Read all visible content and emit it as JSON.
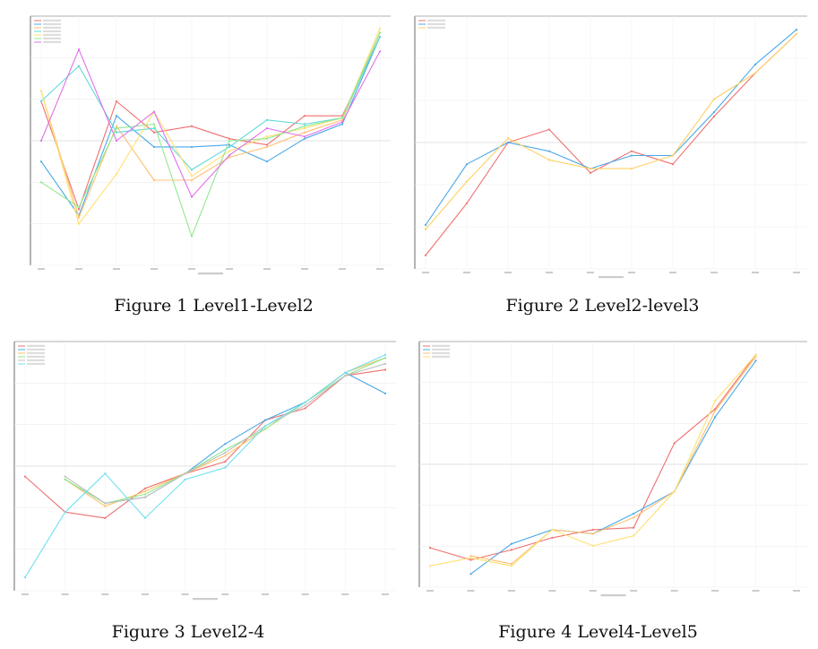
{
  "captions": [
    "Figure 1 Level1-Level2",
    "Figure 2 Level2-level3",
    "Figure 3 Level2-4",
    "Figure 4 Level4-Level5"
  ],
  "chart_data": [
    {
      "type": "line",
      "title": "",
      "grid": true,
      "legend": "top-left",
      "x": [
        1,
        2,
        3,
        4,
        5,
        6,
        7,
        8,
        9,
        10
      ],
      "ylim": [
        0,
        6
      ],
      "series": [
        {
          "color": "#f07070",
          "values": [
            3.95,
            1.35,
            3.95,
            3.2,
            3.35,
            3.05,
            2.9,
            3.6,
            3.6,
            5.5
          ]
        },
        {
          "color": "#4aa8e8",
          "values": [
            2.5,
            1.2,
            3.6,
            2.85,
            2.85,
            2.9,
            2.5,
            3.05,
            3.4,
            5.5
          ]
        },
        {
          "color": "#ffc070",
          "values": [
            4.2,
            1.15,
            3.35,
            2.05,
            2.05,
            2.6,
            2.85,
            3.2,
            3.5,
            5.6
          ]
        },
        {
          "color": "#60d8d8",
          "values": [
            3.95,
            4.8,
            3.2,
            3.3,
            2.3,
            2.85,
            3.5,
            3.4,
            3.55,
            5.5
          ]
        },
        {
          "color": "#ffe070",
          "values": [
            4.2,
            1.0,
            2.2,
            3.7,
            2.15,
            2.75,
            3.1,
            3.3,
            3.55,
            5.7
          ]
        },
        {
          "color": "#90e890",
          "values": [
            2.0,
            1.4,
            3.3,
            3.4,
            0.7,
            3.0,
            3.05,
            3.35,
            3.55,
            5.6
          ]
        },
        {
          "color": "#e070e8",
          "values": [
            3.0,
            5.2,
            3.0,
            3.7,
            1.65,
            2.65,
            3.3,
            3.1,
            3.45,
            5.15
          ]
        }
      ]
    },
    {
      "type": "line",
      "title": "",
      "grid": true,
      "legend": "top-left",
      "x": [
        1,
        2,
        3,
        4,
        5,
        6,
        7,
        8,
        9,
        10
      ],
      "series": [
        {
          "color": "#f07070",
          "values": [
            1.0,
            1.6,
            2.3,
            2.45,
            1.95,
            2.2,
            2.05,
            2.6,
            3.1,
            3.55
          ]
        },
        {
          "color": "#4aa8e8",
          "values": [
            1.35,
            2.05,
            2.3,
            2.2,
            2.0,
            2.15,
            2.15,
            2.65,
            3.2,
            3.6
          ]
        },
        {
          "color": "#ffd060",
          "values": [
            1.3,
            1.85,
            2.35,
            2.1,
            2.0,
            2.0,
            2.15,
            2.8,
            3.1,
            3.55
          ]
        }
      ]
    },
    {
      "type": "line",
      "title": "",
      "grid": true,
      "legend": "top-left",
      "x": [
        1,
        2,
        3,
        4,
        5,
        6,
        7,
        8,
        9,
        10
      ],
      "series": [
        {
          "color": "#f07070",
          "values": [
            2.2,
            1.6,
            1.5,
            2.0,
            2.25,
            2.45,
            3.15,
            3.35,
            3.9,
            4.0
          ]
        },
        {
          "color": "#4aa8e8",
          "values": [
            null,
            2.15,
            1.75,
            1.85,
            2.25,
            2.75,
            3.15,
            3.45,
            3.95,
            3.6
          ]
        },
        {
          "color": "#ffc060",
          "values": [
            null,
            2.15,
            1.7,
            1.95,
            2.25,
            2.55,
            3.0,
            3.45,
            3.95,
            4.2
          ]
        },
        {
          "color": "#90e890",
          "values": [
            null,
            2.15,
            1.75,
            1.9,
            2.25,
            2.65,
            3.0,
            3.45,
            3.9,
            4.2
          ]
        },
        {
          "color": "#c0c0c0",
          "values": [
            null,
            2.2,
            1.75,
            1.85,
            2.25,
            2.6,
            3.05,
            3.4,
            3.9,
            4.1
          ]
        },
        {
          "color": "#70e0f0",
          "values": [
            0.5,
            1.6,
            2.25,
            1.5,
            2.15,
            2.35,
            3.05,
            3.45,
            3.95,
            4.25
          ]
        }
      ]
    },
    {
      "type": "line",
      "title": "",
      "grid": true,
      "legend": "top-left",
      "x": [
        1,
        2,
        3,
        4,
        5,
        6,
        7,
        8,
        9,
        10
      ],
      "series": [
        {
          "color": "#f07070",
          "values": [
            1.5,
            1.2,
            1.45,
            1.75,
            1.95,
            2.0,
            4.1,
            4.95,
            6.3,
            null
          ]
        },
        {
          "color": "#4aa8e8",
          "values": [
            null,
            0.85,
            1.6,
            1.95,
            1.85,
            2.35,
            2.9,
            4.75,
            6.15,
            null
          ]
        },
        {
          "color": "#ffc070",
          "values": [
            null,
            1.3,
            1.1,
            1.95,
            1.85,
            2.25,
            2.9,
            4.9,
            6.25,
            null
          ]
        },
        {
          "color": "#ffe070",
          "values": [
            1.05,
            1.25,
            1.05,
            1.95,
            1.55,
            1.8,
            2.9,
            5.15,
            6.3,
            null
          ]
        }
      ]
    }
  ]
}
